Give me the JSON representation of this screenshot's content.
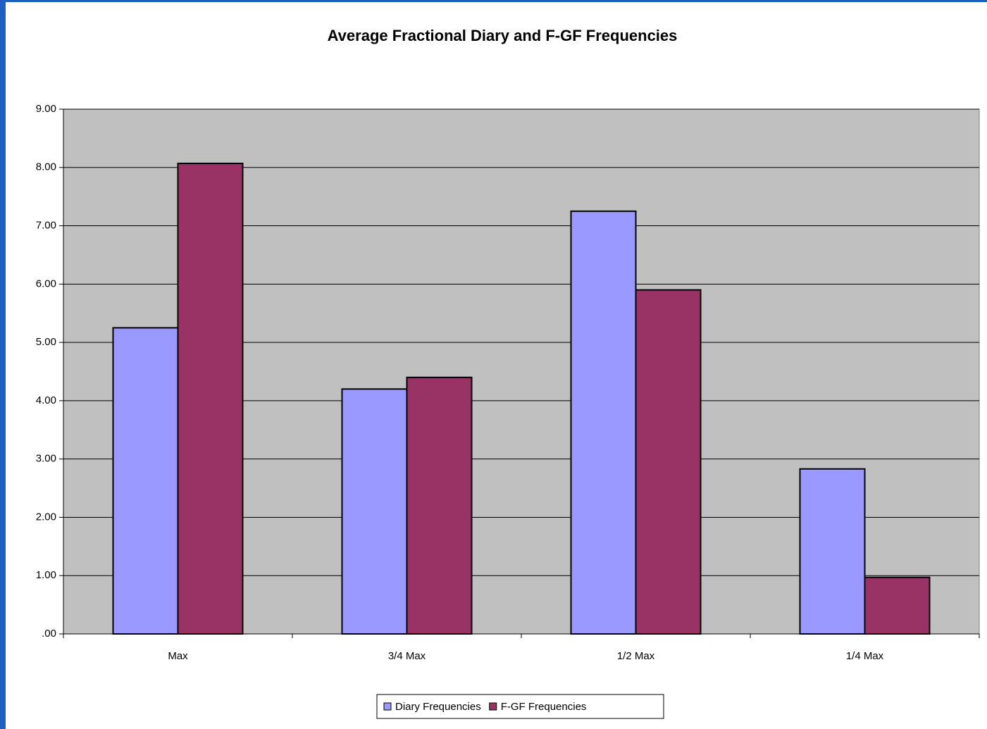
{
  "chart_data": {
    "type": "bar",
    "title": "Average Fractional Diary and F-GF Frequencies",
    "categories": [
      "Max",
      "3/4 Max",
      "1/2 Max",
      "1/4 Max"
    ],
    "series": [
      {
        "name": "Diary Frequencies",
        "color": "#9999ff",
        "values": [
          5.25,
          4.2,
          7.25,
          2.83
        ]
      },
      {
        "name": "F-GF Frequencies",
        "color": "#993366",
        "values": [
          8.07,
          4.4,
          5.9,
          0.97
        ]
      }
    ],
    "ylim": [
      0,
      9
    ],
    "yticks": [
      {
        "value": 0,
        "label": ".00"
      },
      {
        "value": 1,
        "label": "1.00"
      },
      {
        "value": 2,
        "label": "2.00"
      },
      {
        "value": 3,
        "label": "3.00"
      },
      {
        "value": 4,
        "label": "4.00"
      },
      {
        "value": 5,
        "label": "5.00"
      },
      {
        "value": 6,
        "label": "6.00"
      },
      {
        "value": 7,
        "label": "7.00"
      },
      {
        "value": 8,
        "label": "8.00"
      },
      {
        "value": 9,
        "label": "9.00"
      }
    ],
    "grid": true,
    "legend": "bottom"
  }
}
